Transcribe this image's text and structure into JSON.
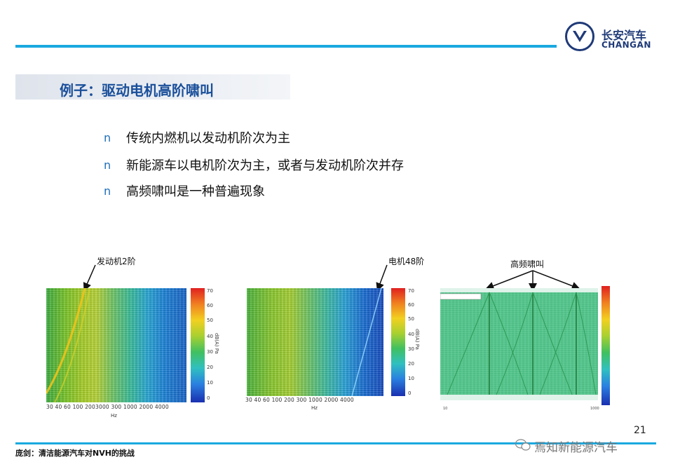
{
  "header": {
    "logo_cn": "长安汽车",
    "logo_en": "CHANGAN",
    "accent_color": "#1aa9e0",
    "brand_color": "#1f3a78"
  },
  "title": "例子：驱动电机高阶啸叫",
  "bullets": [
    {
      "mark": "n",
      "text": "传统内燃机以发动机阶次为主"
    },
    {
      "mark": "n",
      "text": "新能源车以电机阶次为主，或者与发动机阶次并存"
    },
    {
      "mark": "n",
      "text": "高频啸叫是一种普遍现象"
    }
  ],
  "annotations": {
    "engine_order": "发动机2阶",
    "motor_order": "电机48阶",
    "whine": "高频啸叫"
  },
  "charts": {
    "chart1": {
      "colorbar_ticks": [
        "70",
        "60",
        "50",
        "40",
        "30",
        "20",
        "10",
        "0"
      ],
      "colorbar_unit": "dB(A) Pa",
      "x_ticks": "30 40  60   100    2003000 300  1000   2000   4000",
      "xlabel": "Hz"
    },
    "chart2": {
      "colorbar_ticks": [
        "70",
        "60",
        "50",
        "40",
        "30",
        "20",
        "10",
        "0"
      ],
      "colorbar_unit": "dB(A) Pa",
      "x_ticks": "30 40  60   100    200   300    1000   2000  4000",
      "xlabel": "Hz"
    },
    "chart3": {
      "x_ticks_left": "10",
      "x_ticks_right": "1000"
    }
  },
  "footer": {
    "page_number": "21",
    "citation": "庞剑：清洁能源汽车对NVH的挑战",
    "watermark": "焉知新能源汽车"
  }
}
